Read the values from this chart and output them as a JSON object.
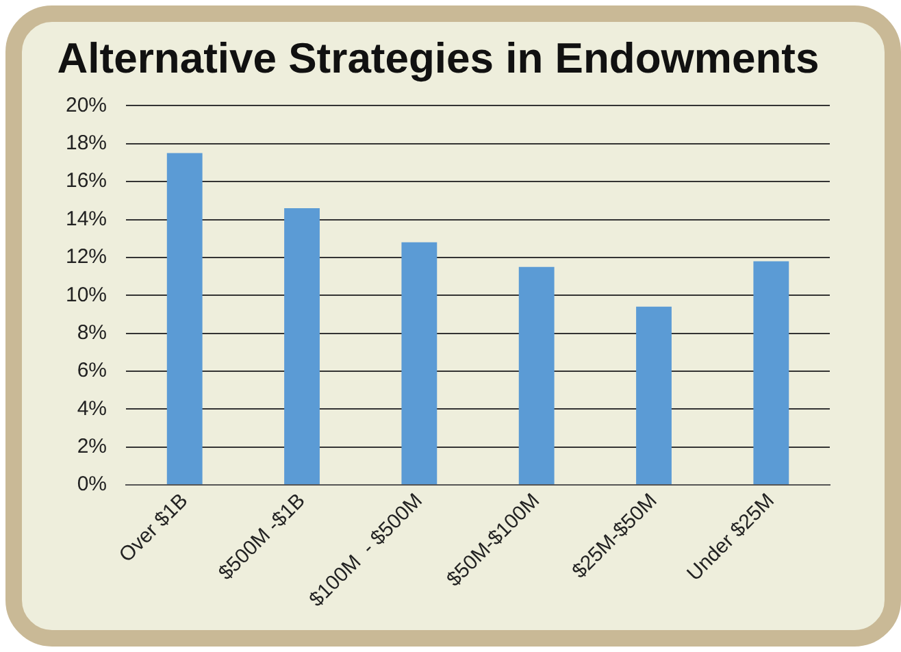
{
  "chart_data": {
    "type": "bar",
    "title": "Alternative Strategies in Endowments",
    "categories": [
      "Over $1B",
      "$500M -$1B",
      "$100M  - $500M",
      "$50M-$100M",
      "$25M-$50M",
      "Under $25M"
    ],
    "values": [
      17.5,
      14.6,
      12.8,
      11.5,
      9.4,
      11.8
    ],
    "color": "#5b9bd5",
    "ylim": [
      0,
      20
    ],
    "yticks": [
      {
        "value": 0,
        "label": "0%"
      },
      {
        "value": 2,
        "label": "2%"
      },
      {
        "value": 4,
        "label": "4%"
      },
      {
        "value": 6,
        "label": "6%"
      },
      {
        "value": 8,
        "label": "8%"
      },
      {
        "value": 10,
        "label": "10%"
      },
      {
        "value": 12,
        "label": "12%"
      },
      {
        "value": 14,
        "label": "14%"
      },
      {
        "value": 16,
        "label": "16%"
      },
      {
        "value": 18,
        "label": "18%"
      },
      {
        "value": 20,
        "label": "20%"
      }
    ],
    "grid": "y",
    "legend": false
  }
}
